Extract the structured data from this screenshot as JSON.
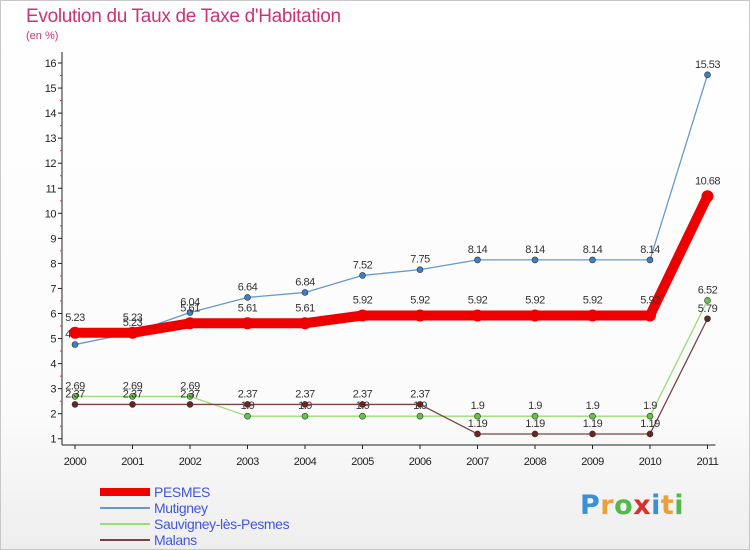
{
  "chart_data": {
    "type": "line",
    "title": "Evolution du Taux de Taxe d'Habitation",
    "subtitle": "(en %)",
    "x": [
      "2000",
      "2001",
      "2002",
      "2003",
      "2004",
      "2005",
      "2006",
      "2007",
      "2008",
      "2009",
      "2010",
      "2011"
    ],
    "y_ticks": [
      "1",
      "2",
      "3",
      "4",
      "5",
      "6",
      "7",
      "8",
      "9",
      "10",
      "11",
      "12",
      "13",
      "14",
      "15",
      "16"
    ],
    "ylim": [
      0.75,
      16.2
    ],
    "grid": false,
    "legend_position": "bottom-left",
    "series": [
      {
        "name": "Mutigney",
        "color": "#6699cc",
        "marker_color": "#3d7fc4",
        "values": [
          4.76,
          5.23,
          6.04,
          6.64,
          6.84,
          7.52,
          7.75,
          8.14,
          8.14,
          8.14,
          8.14,
          15.53
        ],
        "labels": [
          "4.76",
          "5.23",
          "6.04",
          "6.64",
          "6.84",
          "7.52",
          "7.75",
          "8.14",
          "8.14",
          "8.14",
          "8.14",
          "15.53"
        ]
      },
      {
        "name": "Sauvigney-lès-Pesmes",
        "color": "#99dd77",
        "marker_color": "#66c24a",
        "values": [
          2.69,
          2.69,
          2.69,
          1.9,
          1.9,
          1.9,
          1.9,
          1.9,
          1.9,
          1.9,
          1.9,
          6.52
        ],
        "labels": [
          "2.69",
          "2.69",
          "2.69",
          "1.9",
          "1.9",
          "1.9",
          "1.9",
          "1.9",
          "1.9",
          "1.9",
          "1.9",
          "6.52"
        ]
      },
      {
        "name": "Malans",
        "color": "#774444",
        "marker_color": "#6b2424",
        "values": [
          2.37,
          2.37,
          2.37,
          2.37,
          2.37,
          2.37,
          2.37,
          1.19,
          1.19,
          1.19,
          1.19,
          5.79
        ],
        "labels": [
          "2.37",
          "2.37",
          "2.37",
          "2.37",
          "2.37",
          "2.37",
          "2.37",
          "1.19",
          "1.19",
          "1.19",
          "1.19",
          "5.79"
        ]
      },
      {
        "name": "PESMES",
        "color": "#ee0000",
        "marker_color": "#ee0000",
        "emphasis": true,
        "values": [
          5.23,
          5.23,
          5.61,
          5.61,
          5.61,
          5.92,
          5.92,
          5.92,
          5.92,
          5.92,
          5.92,
          10.68
        ],
        "labels": [
          "5.23",
          "5.23",
          "5.61",
          "5.61",
          "5.61",
          "5.92",
          "5.92",
          "5.92",
          "5.92",
          "5.92",
          "5.92",
          "10.68"
        ]
      }
    ]
  },
  "legend": [
    {
      "label": "PESMES",
      "color": "#ee0000",
      "thickness": 8
    },
    {
      "label": "Mutigney",
      "color": "#6699cc",
      "thickness": 2
    },
    {
      "label": "Sauvigney-lès-Pesmes",
      "color": "#99dd77",
      "thickness": 2
    },
    {
      "label": "Malans",
      "color": "#774444",
      "thickness": 2
    }
  ],
  "logo": {
    "letters": [
      "P",
      "r",
      "o",
      "x",
      "i",
      "t",
      "i"
    ],
    "colors": [
      "#3b8fd6",
      "#e9a13b",
      "#56b84a",
      "#d9302c",
      "#3b8fd6",
      "#e9a13b",
      "#56b84a"
    ]
  }
}
